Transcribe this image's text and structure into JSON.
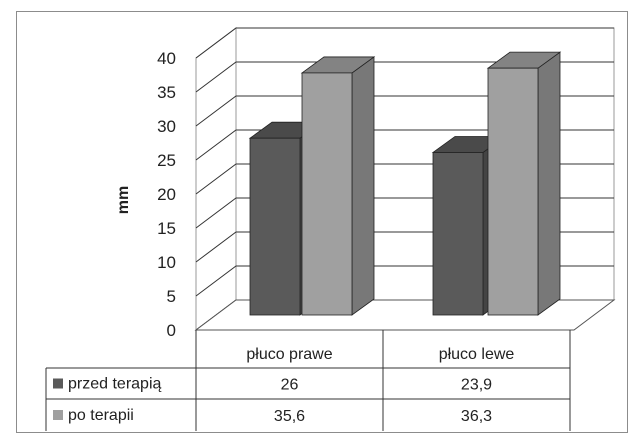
{
  "chart_data": {
    "type": "bar",
    "ylabel": "mm",
    "ylim": [
      0,
      40
    ],
    "yticks": [
      "0",
      "5",
      "10",
      "15",
      "20",
      "25",
      "30",
      "35",
      "40"
    ],
    "categories": [
      "płuco prawe",
      "płuco lewe"
    ],
    "series": [
      {
        "name": "przed terapią",
        "values": [
          26,
          23.9
        ],
        "labels": [
          "26",
          "23,9"
        ],
        "color": "#5a5a5a"
      },
      {
        "name": "po terapii",
        "values": [
          35.6,
          36.3
        ],
        "labels": [
          "35,6",
          "36,3"
        ],
        "color": "#a0a0a0"
      }
    ],
    "legend": "table",
    "grid": true,
    "style": "3d-clustered-column"
  }
}
